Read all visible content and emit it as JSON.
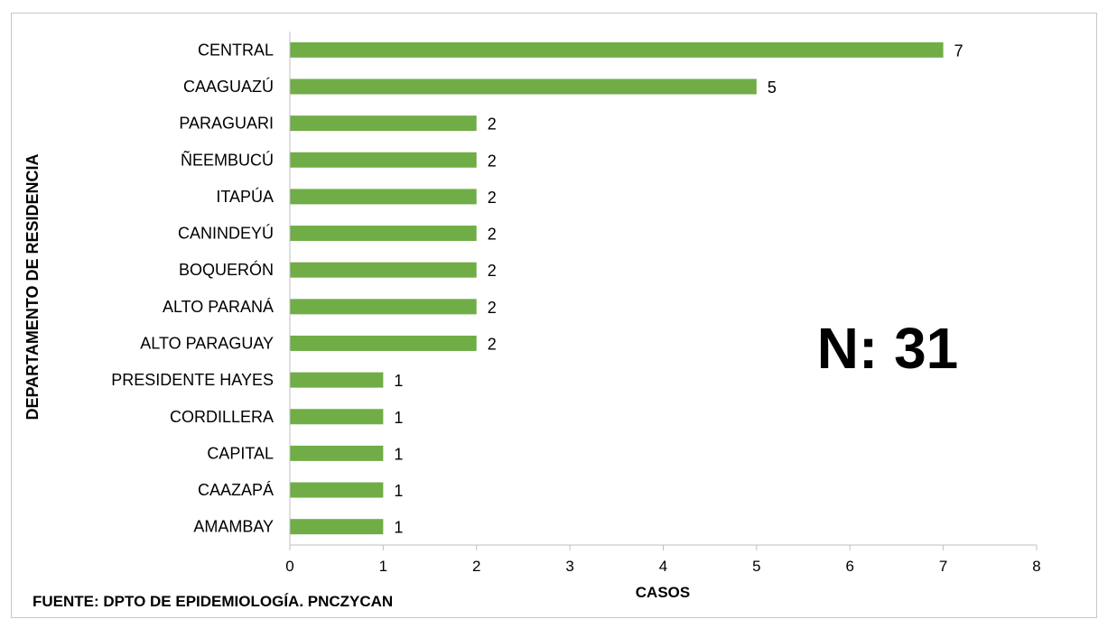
{
  "chart_data": {
    "type": "bar",
    "orientation": "horizontal",
    "categories": [
      "CENTRAL",
      "CAAGUAZÚ",
      "PARAGUARI",
      "ÑEEMBUCÚ",
      "ITAPÚA",
      "CANINDEYÚ",
      "BOQUERÓN",
      "ALTO PARANÁ",
      "ALTO PARAGUAY",
      "PRESIDENTE HAYES",
      "CORDILLERA",
      "CAPITAL",
      "CAAZAPÁ",
      "AMAMBAY"
    ],
    "values": [
      7,
      5,
      2,
      2,
      2,
      2,
      2,
      2,
      2,
      1,
      1,
      1,
      1,
      1
    ],
    "xlabel": "CASOS",
    "ylabel": "DEPARTAMENTO DE RESIDENCIA",
    "xlim": [
      0,
      8
    ],
    "xticks": [
      "0",
      "1",
      "2",
      "3",
      "4",
      "5",
      "6",
      "7",
      "8"
    ],
    "bar_color": "#70ad47",
    "grid": false,
    "annotation": "N: 31",
    "source": "FUENTE: DPTO DE EPIDEMIOLOGÍA. PNCZYCAN"
  }
}
